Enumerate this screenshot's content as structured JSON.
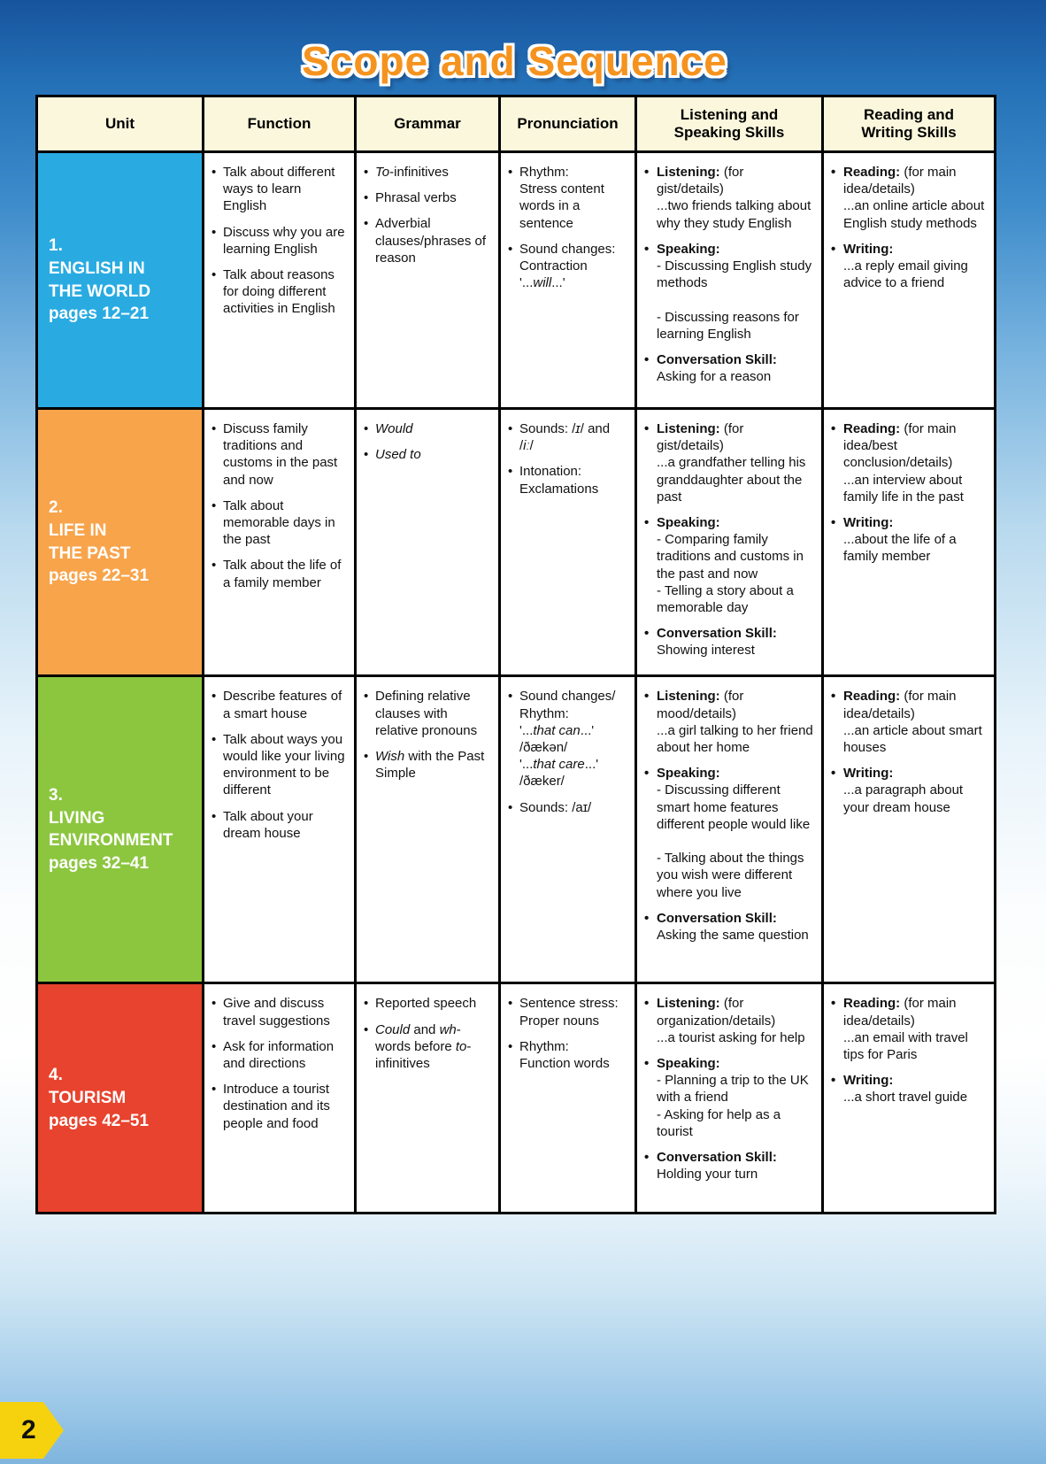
{
  "title": "Scope and Sequence",
  "footer": {
    "page_number": "2"
  },
  "table": {
    "headers": [
      "Unit",
      "Function",
      "Grammar",
      "Pronunciation",
      "Listening and\nSpeaking Skills",
      "Reading and\nWriting Skills"
    ],
    "rows": [
      {
        "unit": {
          "number": "1.",
          "title": "ENGLISH IN\nTHE WORLD",
          "pages": "pages 12–21",
          "color": "#29ABE2"
        },
        "function": [
          [
            {
              "t": "Talk about different ways to learn English"
            }
          ],
          [
            {
              "t": "Discuss why you are learning English"
            }
          ],
          [
            {
              "t": "Talk about reasons for doing different activities in English"
            }
          ]
        ],
        "grammar": [
          [
            {
              "t": "To",
              "i": true
            },
            {
              "t": "-infinitives"
            }
          ],
          [
            {
              "t": "Phrasal verbs"
            }
          ],
          [
            {
              "t": "Adverbial clauses/phrases of reason"
            }
          ]
        ],
        "pronunciation": [
          [
            {
              "t": "Rhythm:\nStress content words in a sentence"
            }
          ],
          [
            {
              "t": "Sound changes:\nContraction\n'..."
            },
            {
              "t": "will",
              "i": true
            },
            {
              "t": "...'"
            }
          ]
        ],
        "listening": [
          [
            {
              "t": "Listening: ",
              "b": true
            },
            {
              "t": "(for gist/details)\n...two friends talking about why they study English"
            }
          ],
          [
            {
              "t": "Speaking:",
              "b": true
            },
            {
              "t": "\n- Discussing English study methods\n\n- Discussing reasons for learning English"
            }
          ],
          [
            {
              "t": "Conversation Skill:",
              "b": true
            },
            {
              "t": "\nAsking for a reason"
            }
          ]
        ],
        "reading": [
          [
            {
              "t": "Reading: ",
              "b": true
            },
            {
              "t": "(for main idea/details)\n...an online article about English study methods"
            }
          ],
          [
            {
              "t": "Writing:",
              "b": true
            },
            {
              "t": "\n...a reply email giving advice to a friend"
            }
          ]
        ]
      },
      {
        "unit": {
          "number": "2.",
          "title": "LIFE IN\nTHE PAST",
          "pages": "pages 22–31",
          "color": "#F8A44B"
        },
        "function": [
          [
            {
              "t": "Discuss family traditions and customs in the past and now"
            }
          ],
          [
            {
              "t": "Talk about memorable days in the past"
            }
          ],
          [
            {
              "t": "Talk about the life of a family member"
            }
          ]
        ],
        "grammar": [
          [
            {
              "t": "Would",
              "i": true
            }
          ],
          [
            {
              "t": "Used to",
              "i": true
            }
          ]
        ],
        "pronunciation": [
          [
            {
              "t": "Sounds: /"
            },
            {
              "t": "ɪ",
              "i": true
            },
            {
              "t": "/ and /"
            },
            {
              "t": "iː",
              "i": true
            },
            {
              "t": "/"
            }
          ],
          [
            {
              "t": "Intonation:\nExclamations"
            }
          ]
        ],
        "listening": [
          [
            {
              "t": "Listening: ",
              "b": true
            },
            {
              "t": "(for gist/details)\n...a grandfather telling his granddaughter about the past"
            }
          ],
          [
            {
              "t": "Speaking:",
              "b": true
            },
            {
              "t": "\n- Comparing family traditions and customs in the past and now\n- Telling a story about a memorable day"
            }
          ],
          [
            {
              "t": "Conversation Skill:",
              "b": true
            },
            {
              "t": "\nShowing interest"
            }
          ]
        ],
        "reading": [
          [
            {
              "t": "Reading: ",
              "b": true
            },
            {
              "t": "(for main idea/best conclusion/details)\n...an interview about family life in the past"
            }
          ],
          [
            {
              "t": "Writing:",
              "b": true
            },
            {
              "t": "\n...about the life of a family member"
            }
          ]
        ]
      },
      {
        "unit": {
          "number": "3.",
          "title": "LIVING\nENVIRONMENT",
          "pages": "pages 32–41",
          "color": "#8CC63F"
        },
        "function": [
          [
            {
              "t": "Describe features of a smart house"
            }
          ],
          [
            {
              "t": "Talk about ways you would like your living environment to be different"
            }
          ],
          [
            {
              "t": "Talk about your dream house"
            }
          ]
        ],
        "grammar": [
          [
            {
              "t": "Defining relative clauses with relative pronouns"
            }
          ],
          [
            {
              "t": "Wish",
              "i": true
            },
            {
              "t": " with the Past Simple"
            }
          ]
        ],
        "pronunciation": [
          [
            {
              "t": "Sound changes/\nRhythm:\n'..."
            },
            {
              "t": "that can",
              "i": true
            },
            {
              "t": "...'\n/ðækən/\n'..."
            },
            {
              "t": "that care",
              "i": true
            },
            {
              "t": "...'\n/ðæker/"
            }
          ],
          [
            {
              "t": "Sounds: /aɪ/"
            }
          ]
        ],
        "listening": [
          [
            {
              "t": "Listening: ",
              "b": true
            },
            {
              "t": "(for mood/details)\n...a girl talking to her friend about her home"
            }
          ],
          [
            {
              "t": "Speaking:",
              "b": true
            },
            {
              "t": "\n- Discussing different smart home features different people would like\n\n- Talking about the things you wish were different where you live"
            }
          ],
          [
            {
              "t": "Conversation Skill:",
              "b": true
            },
            {
              "t": "\nAsking the same question"
            }
          ]
        ],
        "reading": [
          [
            {
              "t": "Reading: ",
              "b": true
            },
            {
              "t": "(for main idea/details)\n...an article about smart houses"
            }
          ],
          [
            {
              "t": "Writing:",
              "b": true
            },
            {
              "t": "\n...a paragraph about your dream house"
            }
          ]
        ]
      },
      {
        "unit": {
          "number": "4.",
          "title": "TOURISM",
          "pages": "pages 42–51",
          "color": "#E8432E"
        },
        "function": [
          [
            {
              "t": "Give and discuss travel suggestions"
            }
          ],
          [
            {
              "t": "Ask for information and directions"
            }
          ],
          [
            {
              "t": "Introduce a tourist destination and its people and food"
            }
          ]
        ],
        "grammar": [
          [
            {
              "t": "Reported speech"
            }
          ],
          [
            {
              "t": "Could",
              "i": true
            },
            {
              "t": " and "
            },
            {
              "t": "wh",
              "i": true
            },
            {
              "t": "-words before "
            },
            {
              "t": "to",
              "i": true
            },
            {
              "t": "-infinitives"
            }
          ]
        ],
        "pronunciation": [
          [
            {
              "t": "Sentence stress: Proper nouns"
            }
          ],
          [
            {
              "t": "Rhythm:\nFunction words"
            }
          ]
        ],
        "listening": [
          [
            {
              "t": "Listening: ",
              "b": true
            },
            {
              "t": "(for organization/details)\n...a tourist asking for help"
            }
          ],
          [
            {
              "t": "Speaking:",
              "b": true
            },
            {
              "t": "\n- Planning a trip to the UK with a friend\n- Asking for help as a tourist"
            }
          ],
          [
            {
              "t": "Conversation Skill:",
              "b": true
            },
            {
              "t": "\nHolding your turn"
            }
          ]
        ],
        "reading": [
          [
            {
              "t": "Reading: ",
              "b": true
            },
            {
              "t": "(for main idea/details)\n...an email with travel tips for Paris"
            }
          ],
          [
            {
              "t": "Writing:",
              "b": true
            },
            {
              "t": "\n...a short travel guide"
            }
          ]
        ]
      }
    ]
  }
}
